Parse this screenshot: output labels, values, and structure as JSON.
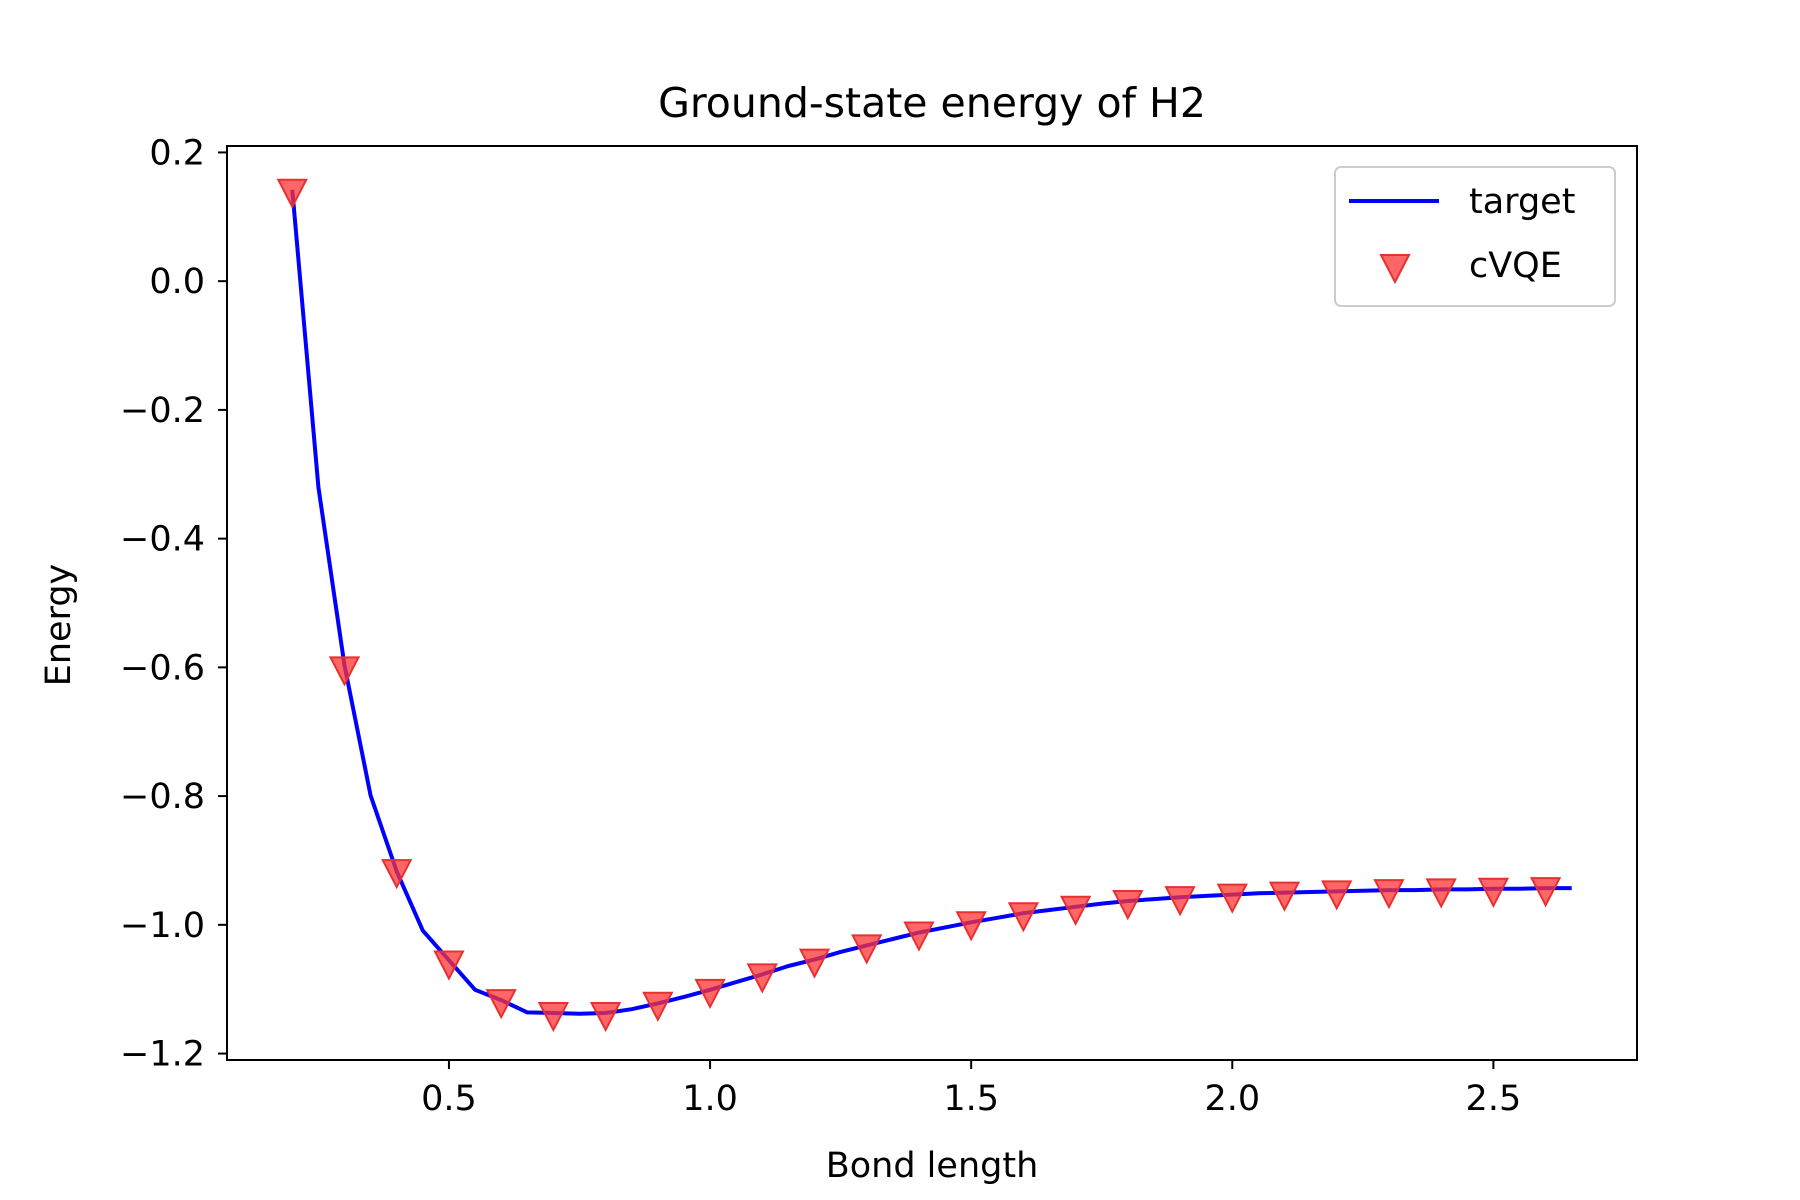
{
  "chart_data": {
    "type": "line",
    "title": "Ground-state energy of H2",
    "xlabel": "Bond length",
    "ylabel": "Energy",
    "xlim": [
      0.075,
      2.775
    ],
    "ylim": [
      -1.21,
      0.21
    ],
    "xticks": [
      0.5,
      1.0,
      1.5,
      2.0,
      2.5
    ],
    "xtick_labels": [
      "0.5",
      "1.0",
      "1.5",
      "2.0",
      "2.5"
    ],
    "yticks": [
      0.2,
      0.0,
      -0.2,
      -0.4,
      -0.6,
      -0.8,
      -1.0,
      -1.2
    ],
    "ytick_labels": [
      "0.2",
      "0.0",
      "−0.2",
      "−0.4",
      "−0.6",
      "−0.8",
      "−1.0",
      "−1.2"
    ],
    "grid": false,
    "legend_position": "top-right",
    "series": [
      {
        "name": "target",
        "style": "line",
        "color": "#0000ff",
        "x": [
          0.2,
          0.25,
          0.3,
          0.35,
          0.4,
          0.45,
          0.5,
          0.55,
          0.6,
          0.65,
          0.7,
          0.75,
          0.8,
          0.85,
          0.9,
          0.95,
          1.0,
          1.05,
          1.1,
          1.15,
          1.2,
          1.25,
          1.3,
          1.35,
          1.4,
          1.45,
          1.5,
          1.55,
          1.6,
          1.65,
          1.7,
          1.75,
          1.8,
          1.85,
          1.9,
          1.95,
          2.0,
          2.05,
          2.1,
          2.15,
          2.2,
          2.25,
          2.3,
          2.35,
          2.4,
          2.45,
          2.5,
          2.55,
          2.6,
          2.65
        ],
        "y": [
          0.142,
          -0.32,
          -0.597,
          -0.799,
          -0.917,
          -1.009,
          -1.055,
          -1.101,
          -1.117,
          -1.136,
          -1.137,
          -1.138,
          -1.137,
          -1.131,
          -1.122,
          -1.112,
          -1.101,
          -1.089,
          -1.077,
          -1.064,
          -1.054,
          -1.042,
          -1.032,
          -1.022,
          -1.012,
          -1.004,
          -0.996,
          -0.989,
          -0.982,
          -0.977,
          -0.972,
          -0.967,
          -0.963,
          -0.96,
          -0.957,
          -0.955,
          -0.953,
          -0.951,
          -0.95,
          -0.949,
          -0.948,
          -0.947,
          -0.946,
          -0.946,
          -0.945,
          -0.945,
          -0.944,
          -0.944,
          -0.943,
          -0.943
        ]
      },
      {
        "name": "cVQE",
        "style": "marker",
        "marker": "triangle_down",
        "color": "#ff3333",
        "x": [
          0.2,
          0.3,
          0.4,
          0.5,
          0.6,
          0.7,
          0.8,
          0.9,
          1.0,
          1.1,
          1.2,
          1.3,
          1.4,
          1.5,
          1.6,
          1.7,
          1.8,
          1.9,
          2.0,
          2.1,
          2.2,
          2.3,
          2.4,
          2.5,
          2.6
        ],
        "y": [
          0.142,
          -0.6,
          -0.915,
          -1.057,
          -1.117,
          -1.137,
          -1.137,
          -1.121,
          -1.101,
          -1.077,
          -1.054,
          -1.032,
          -1.012,
          -0.996,
          -0.982,
          -0.972,
          -0.963,
          -0.957,
          -0.953,
          -0.95,
          -0.948,
          -0.946,
          -0.945,
          -0.944,
          -0.943
        ]
      }
    ]
  }
}
